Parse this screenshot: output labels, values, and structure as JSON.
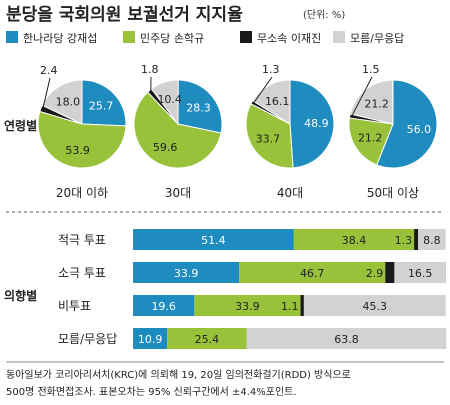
{
  "title": "분당을 국회의원 보궐선거 지지율",
  "unit_note": "(단위: %)",
  "colors": {
    "cand1": "#1e8cbf",
    "cand2": "#98c23a",
    "cand3": "#1a1a1a",
    "undecided": "#d2d2d2"
  },
  "legend": [
    {
      "label": "한나라당 강재섭",
      "color": "#1e8cbf"
    },
    {
      "label": "민주당 손학규",
      "color": "#98c23a"
    },
    {
      "label": "무소속 이재진",
      "color": "#1a1a1a"
    },
    {
      "label": "모름/무응답",
      "color": "#d2d2d2"
    }
  ],
  "section_labels": {
    "age": "연령별",
    "ideology": "의향별"
  },
  "source_note": {
    "line1": "동아일보가 코리아리서치(KRC)에 의뢰해 19, 20일 임의전화걸기(RDD) 방식으로",
    "line2": "500명 전화면접조사. 표본오차는 95% 신뢰구간에서 ±4.4%포인트."
  },
  "chart_data": [
    {
      "type": "pie",
      "group": "연령별",
      "series_order": [
        "한나라당 강재섭",
        "민주당 손학규",
        "무소속 이재진",
        "모름/무응답"
      ],
      "pies": [
        {
          "label": "20대 이하",
          "values": [
            25.7,
            53.9,
            2.4,
            18.0
          ]
        },
        {
          "label": "30대",
          "values": [
            28.3,
            59.6,
            1.8,
            10.4
          ]
        },
        {
          "label": "40대",
          "values": [
            48.9,
            33.7,
            1.3,
            16.1
          ]
        },
        {
          "label": "50대 이상",
          "values": [
            56.0,
            21.2,
            1.5,
            21.2
          ]
        }
      ]
    },
    {
      "type": "bar",
      "group": "의향별",
      "orientation": "horizontal",
      "stacked": true,
      "categories": [
        "적극 투표",
        "소극 투표",
        "비투표",
        "모름/무응답"
      ],
      "series": [
        {
          "name": "한나라당 강재섭",
          "values": [
            51.4,
            33.9,
            19.6,
            10.9
          ]
        },
        {
          "name": "민주당 손학규",
          "values": [
            38.4,
            46.7,
            33.9,
            25.4
          ]
        },
        {
          "name": "무소속 이재진",
          "values": [
            1.3,
            2.9,
            1.1,
            0
          ]
        },
        {
          "name": "모름/무응답",
          "values": [
            8.8,
            16.5,
            45.3,
            63.8
          ]
        }
      ],
      "xlim": [
        0,
        100
      ]
    }
  ]
}
